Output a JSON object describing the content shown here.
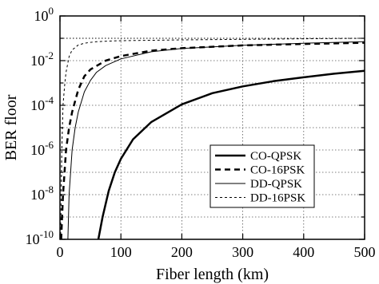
{
  "chart_data": {
    "type": "line",
    "xlabel": "Fiber length (km)",
    "ylabel": "BER floor",
    "xlim": [
      0,
      500
    ],
    "ylim": [
      1e-10,
      1
    ],
    "yscale": "log",
    "grid": true,
    "grid_style": "dotted",
    "legend_position": "lower-right",
    "x_ticks": [
      "0",
      "100",
      "200",
      "300",
      "400",
      "500"
    ],
    "y_ticks": [
      {
        "base": "10",
        "exp": "0"
      },
      {
        "base": "10",
        "exp": "-2"
      },
      {
        "base": "10",
        "exp": "-4"
      },
      {
        "base": "10",
        "exp": "-6"
      },
      {
        "base": "10",
        "exp": "-8"
      },
      {
        "base": "10",
        "exp": "-10"
      }
    ],
    "series": [
      {
        "name": "CO-QPSK",
        "line": "solid-thick",
        "x": [
          63,
          70,
          80,
          90,
          100,
          120,
          150,
          200,
          250,
          300,
          350,
          400,
          450,
          500
        ],
        "y": [
          1e-10,
          1e-09,
          1.5e-08,
          1e-07,
          4e-07,
          3e-06,
          1.8e-05,
          0.00011,
          0.00035,
          0.0007,
          0.0012,
          0.0018,
          0.0026,
          0.0035
        ]
      },
      {
        "name": "CO-16PSK",
        "line": "dashed-thick",
        "x": [
          2,
          5,
          10,
          15,
          20,
          30,
          40,
          50,
          75,
          100,
          150,
          200,
          300,
          400,
          500
        ],
        "y": [
          1e-10,
          1e-08,
          1e-06,
          1e-05,
          5e-05,
          0.0005,
          0.002,
          0.004,
          0.01,
          0.016,
          0.028,
          0.036,
          0.048,
          0.056,
          0.063
        ]
      },
      {
        "name": "DD-QPSK",
        "line": "solid-thin",
        "x": [
          13,
          15,
          20,
          25,
          30,
          40,
          50,
          60,
          75,
          100,
          150,
          200,
          300,
          400,
          500
        ],
        "y": [
          1e-10,
          1e-08,
          1e-06,
          1e-05,
          5e-05,
          0.0004,
          0.0013,
          0.003,
          0.006,
          0.012,
          0.025,
          0.035,
          0.049,
          0.06,
          0.07
        ]
      },
      {
        "name": "DD-16PSK",
        "line": "dashed-thin",
        "x": [
          1,
          2,
          3,
          5,
          8,
          10,
          15,
          20,
          30,
          40,
          50,
          60,
          80,
          100,
          200,
          300,
          400,
          500
        ],
        "y": [
          1e-10,
          1e-08,
          1e-06,
          0.0001,
          0.001,
          0.003,
          0.015,
          0.03,
          0.05,
          0.06,
          0.066,
          0.07,
          0.075,
          0.078,
          0.085,
          0.09,
          0.095,
          0.1
        ]
      }
    ],
    "reference_lines": [
      {
        "y": 0.1,
        "style": "dotted"
      }
    ]
  }
}
